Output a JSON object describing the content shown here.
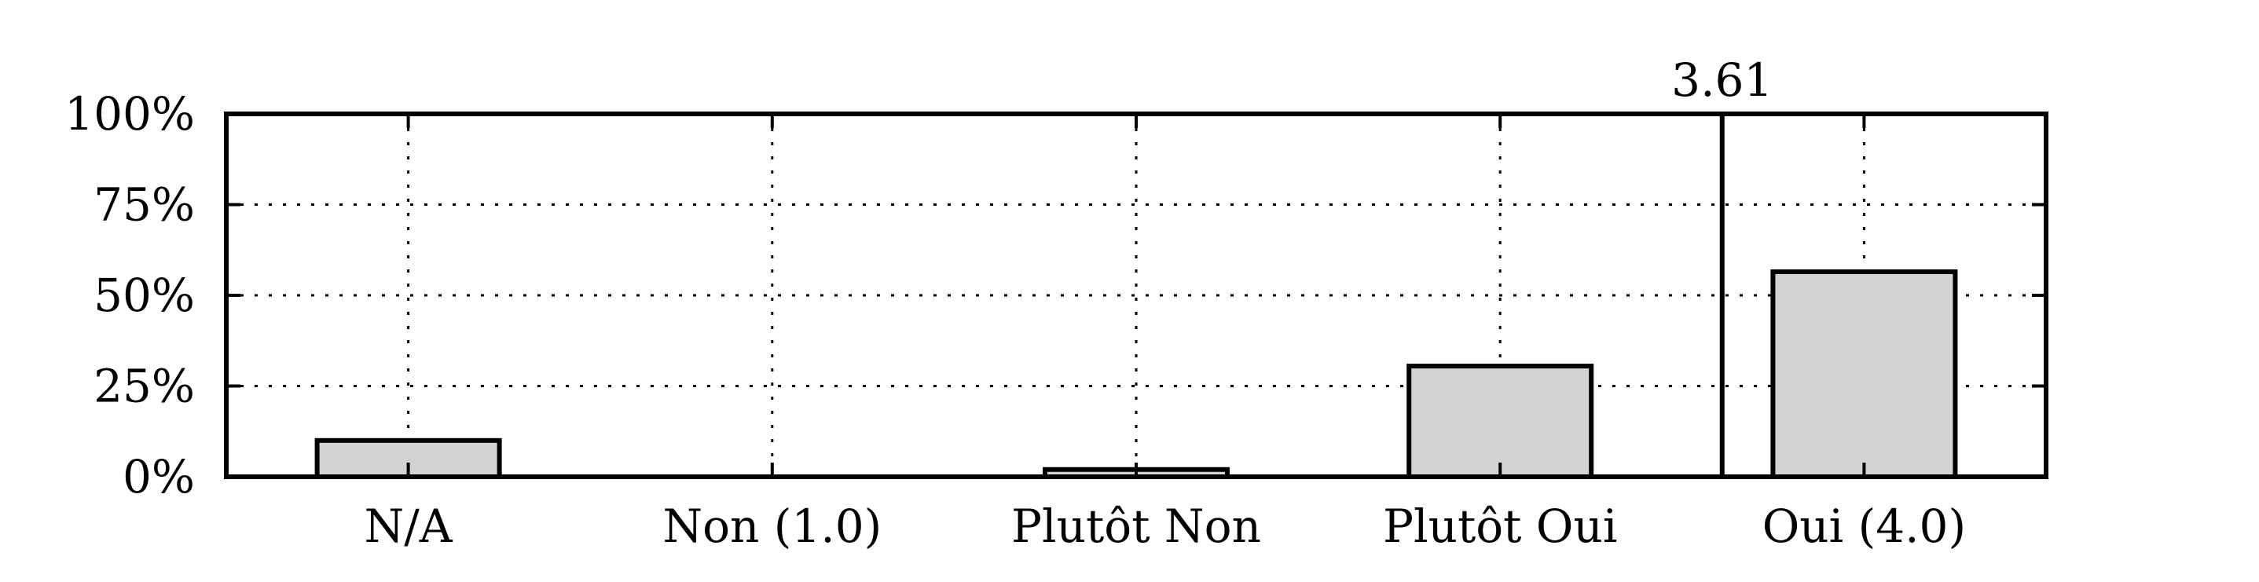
{
  "chart_data": {
    "type": "bar",
    "categories": [
      "N/A",
      "Non (1.0)",
      "Plutôt Non",
      "Plutôt Oui",
      "Oui (4.0)"
    ],
    "values": [
      10,
      0,
      2,
      30.5,
      56.5
    ],
    "y_tick_labels": [
      "0%",
      "25%",
      "50%",
      "75%",
      "100%"
    ],
    "y_ticks": [
      0,
      25,
      50,
      75,
      100
    ],
    "ylim": [
      0,
      100
    ],
    "grid": true,
    "mean_marker": {
      "value": 3.61,
      "label": "3.61"
    },
    "colors": {
      "bar_fill": "#d3d3d3",
      "bar_stroke": "#000000",
      "grid": "#000000"
    }
  }
}
